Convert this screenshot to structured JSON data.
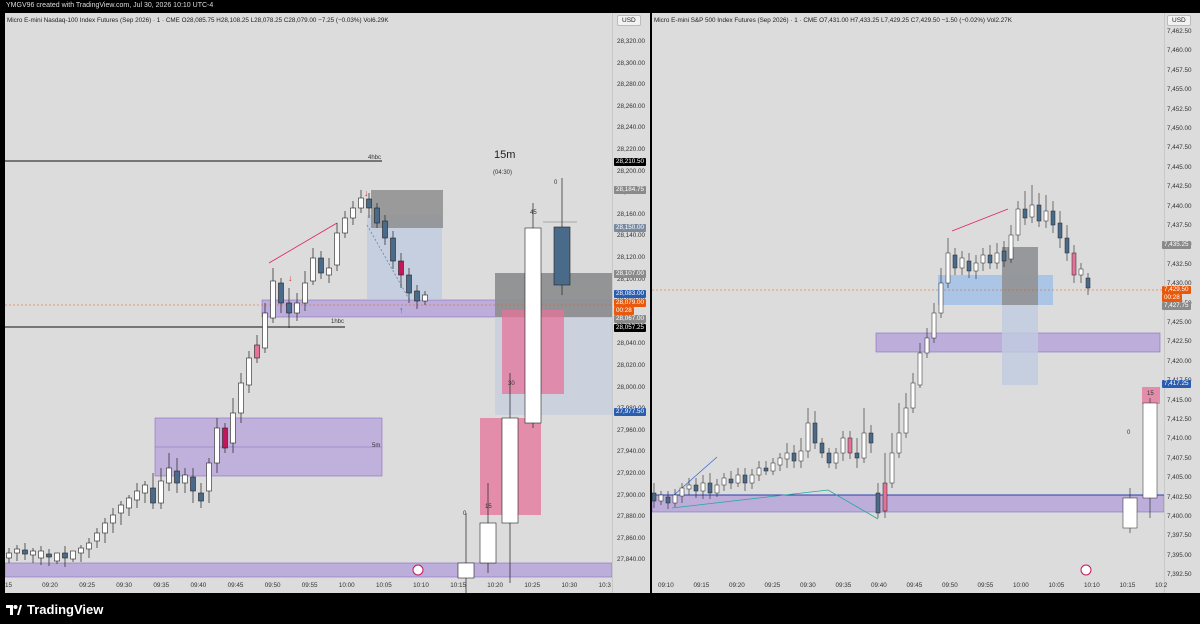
{
  "header": {
    "created_text": "YMGV96 created with TradingView.com, Jul 30, 2026 10:10 UTC-4"
  },
  "footer": {
    "brand": "TradingView"
  },
  "left_chart": {
    "legend": "Micro E-mini Nasdaq-100 Index Futures (Sep 2026) · 1 · CME  O28,085.75  H28,108.25  L28,078.25  C28,079.00  −7.25 (−0.03%)  Vol6.29K",
    "currency": "USD",
    "price_ticks": [
      "28,320.00",
      "28,300.00",
      "28,280.00",
      "28,260.00",
      "28,240.00",
      "28,220.00",
      "28,200.00",
      "28,180.00",
      "28,160.00",
      "28,140.00",
      "28,120.00",
      "28,100.00",
      "28,080.00",
      "28,060.00",
      "28,040.00",
      "28,020.00",
      "28,000.00",
      "27,980.00",
      "27,960.00",
      "27,940.00",
      "27,920.00",
      "27,900.00",
      "27,880.00",
      "27,860.00",
      "27,840.00"
    ],
    "time_ticks": [
      "15",
      "09:20",
      "09:25",
      "09:30",
      "09:35",
      "09:40",
      "09:45",
      "09:50",
      "09:55",
      "10:00",
      "10:05",
      "10:10",
      "10:15",
      "10:20",
      "10:25",
      "10:30",
      "10:3"
    ],
    "price_tags": {
      "p1": "28,210.50",
      "p2": "28,184.75",
      "p3": "28,150.00",
      "p4": "28,107.00",
      "p5": "28,083.00",
      "p6": "28,079.00",
      "p6_timer": "00:28",
      "p7": "28,067.00",
      "p8": "28,057.25",
      "p9": "27,977.50"
    },
    "annotations": {
      "level_4hbc": "4hbc",
      "level_1hbc": "1hbc",
      "zone_5m": "5m",
      "tf_label": "15m",
      "tf_countdown": "(04:30)",
      "c45": "45",
      "c0a": "0",
      "c30": "30",
      "c15": "15",
      "c0b": "0"
    },
    "colors": {
      "bull": "#ffffff",
      "bear": "#4a6a8a",
      "purple_zone": "#b39ddb",
      "pink_zone": "#e57399",
      "gray_zone": "#8a8a8a",
      "blue_zone": "#c0cce0"
    }
  },
  "right_chart": {
    "legend": "Micro E-mini S&P 500 Index Futures (Sep 2026) · 1 · CME  O7,431.00  H7,433.25  L7,429.25  C7,429.50  −1.50 (−0.02%)  Vol2.27K",
    "currency": "USD",
    "price_ticks": [
      "7,462.50",
      "7,460.00",
      "7,457.50",
      "7,455.00",
      "7,452.50",
      "7,450.00",
      "7,447.50",
      "7,445.00",
      "7,442.50",
      "7,440.00",
      "7,437.50",
      "7,435.00",
      "7,432.50",
      "7,430.00",
      "7,427.50",
      "7,425.00",
      "7,422.50",
      "7,420.00",
      "7,417.50",
      "7,415.00",
      "7,412.50",
      "7,410.00",
      "7,407.50",
      "7,405.00",
      "7,402.50",
      "7,400.00",
      "7,397.50",
      "7,395.00",
      "7,392.50"
    ],
    "time_ticks": [
      "09:10",
      "09:15",
      "09:20",
      "09:25",
      "09:30",
      "09:35",
      "09:40",
      "09:45",
      "09:50",
      "09:55",
      "10:00",
      "10:05",
      "10:10",
      "10:15",
      "10:2"
    ],
    "price_tags": {
      "q1": "7,435.25",
      "q2": "7,429.50",
      "q2_timer": "00:28",
      "q3": "7,427.75",
      "q4": "7,417.25"
    },
    "annotations": {
      "c15": "15",
      "c0": "0"
    }
  }
}
